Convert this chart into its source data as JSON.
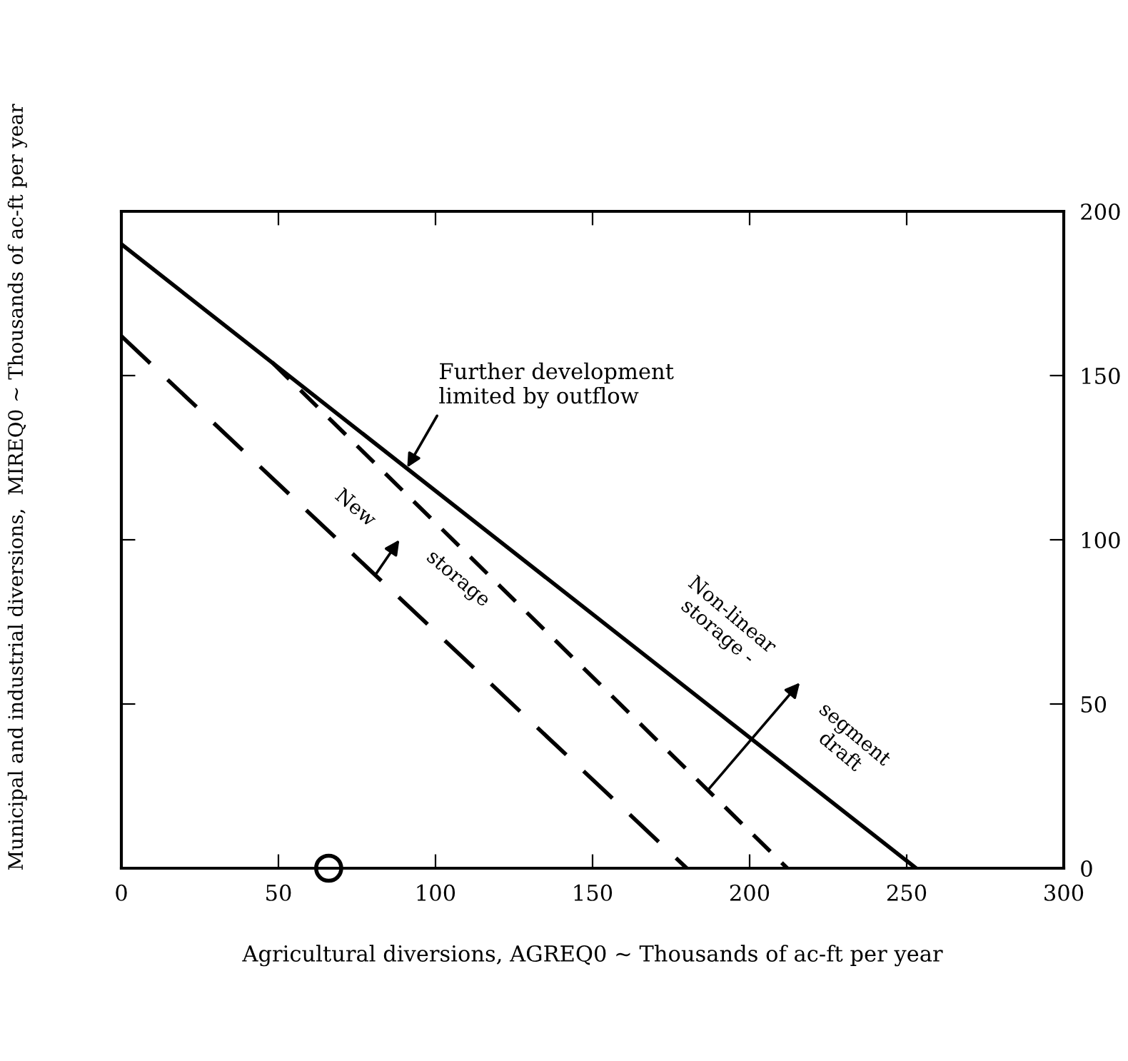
{
  "chart_data": {
    "type": "line",
    "xlabel": "Agricultural diversions, AGREQ0 ~ Thousands of ac-ft per year",
    "ylabel": "Municipal and industrial diversions,  MIREQ0 ~ Thousands of ac-ft per year",
    "series": [
      {
        "color": "#000000",
        "line_style": "solid",
        "x": [
          0,
          253
        ],
        "values": [
          190,
          0
        ]
      },
      {
        "color": "#000000",
        "line_style": "dashed",
        "x": [
          48,
          212
        ],
        "values": [
          154,
          0
        ]
      },
      {
        "color": "#000000",
        "line_style": "dashed",
        "x": [
          0,
          180
        ],
        "values": [
          162,
          0
        ]
      },
      {
        "type": "scatter",
        "color": "#000000",
        "marker": "circle",
        "x": [
          66
        ],
        "values": [
          0
        ]
      }
    ],
    "xlim": [
      0,
      300
    ],
    "ylim": [
      0,
      200
    ],
    "xticks": [
      0,
      50,
      100,
      150,
      200,
      250,
      300
    ],
    "yticks": [
      0,
      50,
      100,
      150,
      200
    ],
    "grid": false,
    "annotations": [
      {
        "text": "Further development\nlimited by outflow",
        "x": 91,
        "y": 122
      },
      "New",
      "storage",
      "Non-linear\nstorage -",
      "segment\ndraft"
    ]
  }
}
